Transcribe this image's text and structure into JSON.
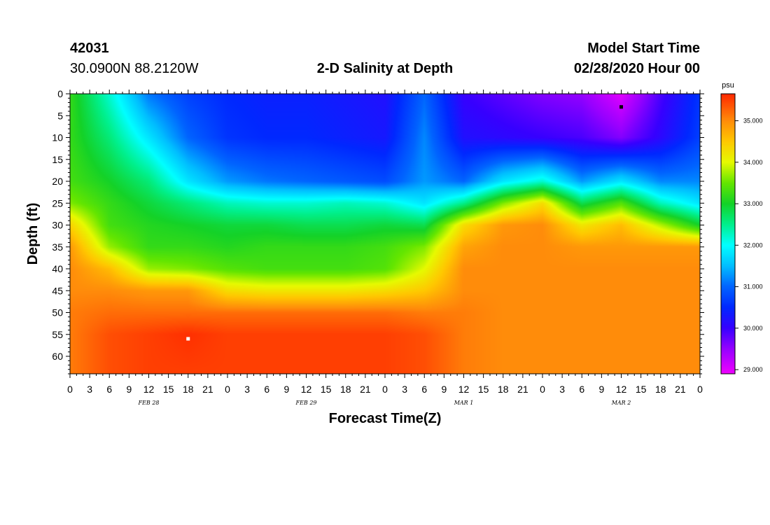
{
  "header": {
    "station_id": "42031",
    "coords": "30.0900N 88.2120W",
    "title": "2-D Salinity at Depth",
    "right_top": "Model Start Time",
    "right_bottom": "02/28/2020 Hour 00"
  },
  "chart_data": {
    "type": "heatmap",
    "title": "2-D Salinity at Depth",
    "xlabel": "Forecast Time(Z)",
    "ylabel": "Depth (ft)",
    "x_range_hours": [
      0,
      96
    ],
    "x_tick_labels": [
      "0",
      "3",
      "6",
      "9",
      "12",
      "15",
      "18",
      "21",
      "0",
      "3",
      "6",
      "9",
      "12",
      "15",
      "18",
      "21",
      "0",
      "3",
      "6",
      "9",
      "12",
      "15",
      "18",
      "21",
      "0",
      "3",
      "6",
      "9",
      "12",
      "15",
      "18",
      "21",
      "0"
    ],
    "date_labels": [
      {
        "label": "FEB 28",
        "hour": 12
      },
      {
        "label": "FEB 29",
        "hour": 36
      },
      {
        "label": "MAR 1",
        "hour": 60
      },
      {
        "label": "MAR 2",
        "hour": 84
      }
    ],
    "y_range": [
      0,
      64
    ],
    "y_tick_labels": [
      "0",
      "5",
      "10",
      "15",
      "20",
      "25",
      "30",
      "35",
      "40",
      "45",
      "50",
      "55",
      "60"
    ],
    "colorbar": {
      "units": "psu",
      "min": 28.9,
      "max": 35.65,
      "tick_labels": [
        "29.000",
        "30.000",
        "31.000",
        "32.000",
        "33.000",
        "34.000",
        "35.000"
      ],
      "tick_values": [
        29,
        30,
        31,
        32,
        33,
        34,
        35
      ]
    },
    "markers": [
      {
        "kind": "max",
        "hour": 18,
        "depth": 56,
        "color": "#ffffff"
      },
      {
        "kind": "min",
        "hour": 84,
        "depth": 3,
        "color": "#000000"
      }
    ],
    "salinity_grid": {
      "times_hours": [
        0,
        6,
        12,
        18,
        24,
        30,
        36,
        42,
        48,
        54,
        60,
        66,
        72,
        78,
        84,
        90,
        96
      ],
      "depths_ft": [
        0,
        10,
        20,
        25,
        30,
        35,
        40,
        45,
        50,
        55,
        64
      ],
      "values_psu": [
        [
          33.2,
          32.2,
          31.1,
          30.7,
          30.5,
          30.4,
          30.4,
          30.3,
          30.2,
          31.0,
          30.0,
          29.8,
          29.6,
          29.5,
          29.0,
          29.9,
          30.6
        ],
        [
          33.2,
          32.6,
          31.8,
          31.0,
          30.6,
          30.5,
          30.5,
          30.4,
          30.3,
          31.2,
          30.2,
          30.1,
          30.0,
          29.9,
          29.6,
          30.1,
          30.7
        ],
        [
          33.3,
          33.0,
          32.6,
          31.8,
          31.3,
          31.1,
          31.0,
          30.9,
          30.8,
          31.3,
          31.0,
          31.8,
          32.2,
          31.3,
          31.8,
          31.2,
          31.2
        ],
        [
          33.6,
          33.2,
          32.9,
          32.6,
          32.3,
          32.2,
          32.2,
          32.3,
          32.2,
          31.8,
          32.5,
          33.6,
          34.3,
          32.8,
          33.4,
          32.3,
          31.8
        ],
        [
          34.4,
          33.3,
          33.1,
          33.0,
          32.9,
          32.9,
          32.8,
          32.8,
          32.9,
          32.8,
          34.3,
          34.9,
          35.0,
          34.2,
          34.6,
          33.8,
          33.0
        ],
        [
          34.9,
          33.7,
          33.2,
          33.2,
          33.1,
          33.2,
          33.2,
          33.2,
          33.3,
          33.6,
          34.8,
          35.0,
          35.0,
          34.9,
          34.9,
          34.9,
          34.9
        ],
        [
          35.0,
          34.6,
          33.7,
          33.6,
          33.4,
          33.3,
          33.3,
          33.3,
          33.4,
          34.0,
          35.0,
          35.0,
          35.0,
          35.0,
          35.0,
          35.0,
          35.0
        ],
        [
          35.0,
          35.0,
          34.9,
          34.9,
          34.3,
          34.2,
          34.2,
          34.2,
          34.3,
          34.5,
          35.0,
          35.0,
          35.0,
          35.0,
          35.0,
          35.0,
          35.0
        ],
        [
          35.1,
          35.2,
          35.2,
          35.2,
          35.2,
          35.2,
          35.2,
          35.2,
          35.2,
          35.1,
          35.1,
          35.0,
          35.0,
          35.0,
          35.0,
          35.0,
          35.0
        ],
        [
          35.1,
          35.4,
          35.5,
          35.6,
          35.5,
          35.5,
          35.5,
          35.5,
          35.5,
          35.4,
          35.1,
          35.0,
          35.0,
          35.0,
          35.0,
          35.0,
          35.0
        ],
        [
          35.1,
          35.4,
          35.5,
          35.5,
          35.5,
          35.5,
          35.5,
          35.5,
          35.5,
          35.4,
          35.1,
          35.0,
          35.0,
          35.0,
          35.0,
          35.0,
          35.0
        ]
      ]
    }
  }
}
